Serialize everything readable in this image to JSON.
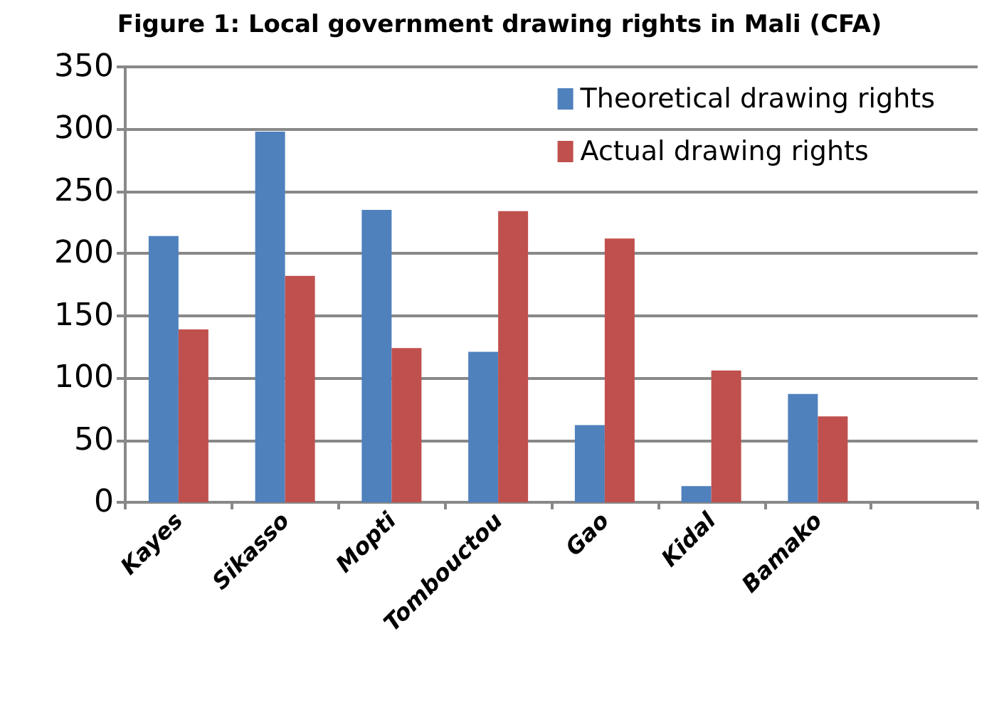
{
  "chart_data": {
    "type": "bar",
    "title": "Figure 1: Local government drawing rights in Mali (CFA)",
    "categories": [
      "Kayes",
      "Sikasso",
      "Mopti",
      "Tombouctou",
      "Gao",
      "Kidal",
      "Bamako",
      null
    ],
    "series": [
      {
        "name": "Theoretical drawing rights",
        "color": "#4f81bd",
        "values": [
          214,
          298,
          235,
          121,
          62,
          13,
          87,
          null
        ]
      },
      {
        "name": "Actual drawing rights",
        "color": "#c0504d",
        "values": [
          139,
          182,
          124,
          234,
          212,
          106,
          69,
          null
        ]
      }
    ],
    "ylim": [
      0,
      350
    ],
    "yticks": [
      0,
      50,
      100,
      150,
      200,
      250,
      300,
      350
    ],
    "grid": "y",
    "legend": "top right"
  }
}
